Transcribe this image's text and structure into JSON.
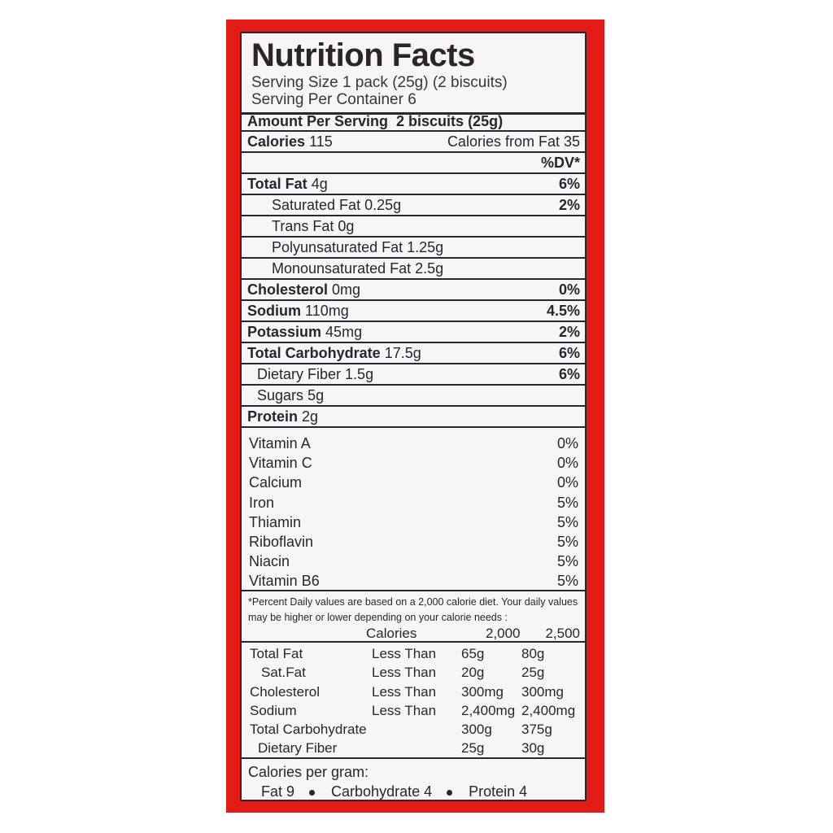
{
  "colors": {
    "frame": "#e41b17",
    "panel": "#f6f6f8",
    "text": "#2a2626"
  },
  "title": "Nutrition Facts",
  "serving_size": "Serving Size 1 pack (25g) (2 biscuits)",
  "servings_per_container": "Serving Per Container 6",
  "amount_per_serving": "Amount Per Serving  2 biscuits (25g)",
  "calories": {
    "label": "Calories",
    "value": "115",
    "from_fat": "Calories from Fat 35"
  },
  "dv_header": "%DV*",
  "nutrients": [
    {
      "label": "Total Fat",
      "value": "4g",
      "dv": "6%"
    },
    {
      "label": "Saturated Fat",
      "value": "0.25g",
      "dv": "2%"
    },
    {
      "label": "Trans Fat",
      "value": "0g",
      "dv": ""
    },
    {
      "label": "Polyunsaturated Fat",
      "value": "1.25g",
      "dv": ""
    },
    {
      "label": "Monounsaturated Fat",
      "value": "2.5g",
      "dv": ""
    },
    {
      "label": "Cholesterol",
      "value": "0mg",
      "dv": "0%"
    },
    {
      "label": "Sodium",
      "value": "110mg",
      "dv": "4.5%"
    },
    {
      "label": "Potassium",
      "value": "45mg",
      "dv": "2%"
    },
    {
      "label": "Total Carbohydrate",
      "value": "17.5g",
      "dv": "6%"
    },
    {
      "label": "Dietary Fiber",
      "value": "1.5g",
      "dv": "6%"
    },
    {
      "label": "Sugars",
      "value": "5g",
      "dv": ""
    },
    {
      "label": "Protein",
      "value": "2g",
      "dv": ""
    }
  ],
  "vitamins": [
    {
      "label": "Vitamin A",
      "dv": "0%"
    },
    {
      "label": "Vitamin C",
      "dv": "0%"
    },
    {
      "label": "Calcium",
      "dv": "0%"
    },
    {
      "label": "Iron",
      "dv": "5%"
    },
    {
      "label": "Thiamin",
      "dv": "5%"
    },
    {
      "label": "Riboflavin",
      "dv": "5%"
    },
    {
      "label": "Niacin",
      "dv": "5%"
    },
    {
      "label": "Vitamin B6",
      "dv": "5%"
    }
  ],
  "footnote": "*Percent Daily values are based on a 2,000 calorie diet. Your daily values may be higher or lower depending on your calorie needs :",
  "dv_table": {
    "header": [
      "Calories",
      "2,000",
      "2,500"
    ],
    "rows": [
      [
        "Total Fat",
        "Less Than",
        "65g",
        "80g"
      ],
      [
        "Sat.Fat",
        "Less Than",
        "20g",
        "25g"
      ],
      [
        "Cholesterol",
        "Less Than",
        "300mg",
        "300mg"
      ],
      [
        "Sodium",
        "Less Than",
        "2,400mg",
        "2,400mg"
      ],
      [
        "Total Carbohydrate",
        "",
        "300g",
        "375g"
      ],
      [
        "Dietary Fiber",
        "",
        "25g",
        "30g"
      ]
    ]
  },
  "calories_per_gram": {
    "label": "Calories per gram:",
    "fat": "Fat 9",
    "carb": "Carbohydrate 4",
    "protein": "Protein 4"
  }
}
